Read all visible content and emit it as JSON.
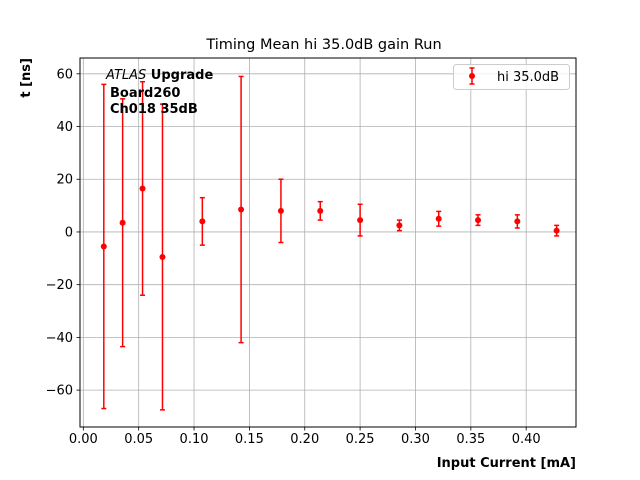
{
  "chart_data": {
    "type": "scatter",
    "title": "Timing Mean hi 35.0dB gain Run",
    "xlabel": "Input Current [mA]",
    "ylabel": "t [ns]",
    "xlim": [
      -0.003,
      0.445
    ],
    "ylim": [
      -74,
      66
    ],
    "xticks": [
      0.0,
      0.05,
      0.1,
      0.15,
      0.2,
      0.25,
      0.3,
      0.35,
      0.4
    ],
    "xtick_labels": [
      "0.00",
      "0.05",
      "0.10",
      "0.15",
      "0.20",
      "0.25",
      "0.30",
      "0.35",
      "0.40"
    ],
    "yticks": [
      -60,
      -40,
      -20,
      0,
      20,
      40,
      60
    ],
    "ytick_labels": [
      "−60",
      "−40",
      "−20",
      "0",
      "20",
      "40",
      "60"
    ],
    "grid": true,
    "legend_position": "upper-right",
    "annotation": {
      "line1_italic": "ATLAS",
      "line1_bold": " Upgrade",
      "line2": "Board260",
      "line3": "Ch018 35dB"
    },
    "series": [
      {
        "name": "hi 35.0dB",
        "color": "#ff0000",
        "marker": "circle",
        "points": [
          {
            "x": 0.0185,
            "y": -5.5,
            "err": 61.5
          },
          {
            "x": 0.0355,
            "y": 3.5,
            "err": 47.0
          },
          {
            "x": 0.0535,
            "y": 16.5,
            "err": 40.5
          },
          {
            "x": 0.0715,
            "y": -9.5,
            "err": 58.0
          },
          {
            "x": 0.1075,
            "y": 4.0,
            "err": 9.0
          },
          {
            "x": 0.1425,
            "y": 8.5,
            "err": 50.5
          },
          {
            "x": 0.1785,
            "y": 8.0,
            "err": 12.0
          },
          {
            "x": 0.214,
            "y": 8.0,
            "err": 3.5
          },
          {
            "x": 0.25,
            "y": 4.5,
            "err": 6.0
          },
          {
            "x": 0.2855,
            "y": 2.5,
            "err": 2.0
          },
          {
            "x": 0.321,
            "y": 5.0,
            "err": 2.8
          },
          {
            "x": 0.3565,
            "y": 4.5,
            "err": 2.0
          },
          {
            "x": 0.392,
            "y": 4.0,
            "err": 2.5
          },
          {
            "x": 0.4275,
            "y": 0.5,
            "err": 2.0
          }
        ]
      }
    ]
  }
}
